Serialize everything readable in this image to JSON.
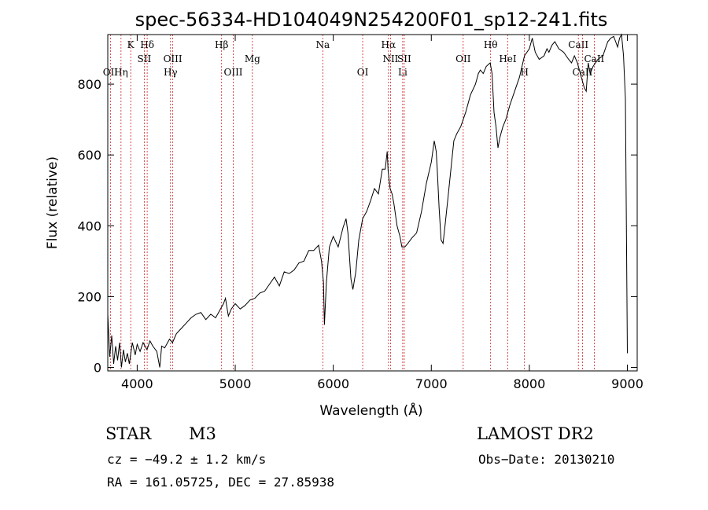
{
  "chart_data": {
    "type": "line",
    "title": "spec-56334-HD104049N254200F01_sp12-241.fits",
    "xlabel": "Wavelength (Å)",
    "ylabel": "Flux (relative)",
    "xlim": [
      3700,
      9100
    ],
    "ylim": [
      -10,
      940
    ],
    "xticks": [
      4000,
      5000,
      6000,
      7000,
      8000,
      9000
    ],
    "yticks": [
      0,
      200,
      400,
      600,
      800
    ],
    "grid": false,
    "series": [
      {
        "x": [
          3700,
          3720,
          3740,
          3760,
          3780,
          3800,
          3820,
          3840,
          3860,
          3880,
          3900,
          3920,
          3950,
          3980,
          4000,
          4030,
          4060,
          4100,
          4130,
          4160,
          4200,
          4230,
          4250,
          4280,
          4300,
          4330,
          4360,
          4400,
          4450,
          4500,
          4550,
          4600,
          4650,
          4700,
          4750,
          4800,
          4850,
          4880,
          4900,
          4930,
          4960,
          5000,
          5050,
          5100,
          5150,
          5200,
          5250,
          5300,
          5350,
          5400,
          5450,
          5500,
          5550,
          5600,
          5650,
          5700,
          5750,
          5800,
          5850,
          5880,
          5900,
          5910,
          5930,
          5960,
          6000,
          6050,
          6100,
          6130,
          6150,
          6180,
          6200,
          6230,
          6260,
          6300,
          6340,
          6380,
          6420,
          6460,
          6500,
          6530,
          6550,
          6560,
          6580,
          6600,
          6620,
          6650,
          6680,
          6700,
          6730,
          6760,
          6800,
          6850,
          6900,
          6950,
          7000,
          7030,
          7050,
          7060,
          7080,
          7100,
          7120,
          7140,
          7170,
          7200,
          7230,
          7260,
          7300,
          7350,
          7400,
          7450,
          7480,
          7500,
          7530,
          7560,
          7600,
          7620,
          7640,
          7660,
          7680,
          7700,
          7730,
          7760,
          7800,
          7850,
          7900,
          7950,
          8000,
          8030,
          8060,
          8100,
          8150,
          8180,
          8200,
          8230,
          8260,
          8300,
          8350,
          8400,
          8430,
          8460,
          8490,
          8520,
          8540,
          8560,
          8580,
          8600,
          8620,
          8650,
          8700,
          8750,
          8800,
          8830,
          8860,
          8880,
          8900,
          8920,
          8940,
          8960,
          8980,
          9000
        ],
        "y": [
          150,
          30,
          90,
          10,
          60,
          20,
          70,
          0,
          50,
          15,
          40,
          10,
          70,
          35,
          65,
          45,
          70,
          50,
          75,
          60,
          45,
          0,
          60,
          55,
          65,
          80,
          70,
          95,
          110,
          125,
          140,
          150,
          155,
          135,
          150,
          140,
          165,
          180,
          195,
          145,
          165,
          180,
          165,
          175,
          190,
          195,
          210,
          215,
          235,
          255,
          230,
          270,
          265,
          275,
          295,
          300,
          330,
          330,
          345,
          300,
          240,
          120,
          240,
          340,
          370,
          340,
          395,
          420,
          380,
          250,
          220,
          270,
          360,
          420,
          440,
          470,
          505,
          490,
          560,
          560,
          610,
          555,
          505,
          490,
          460,
          400,
          370,
          340,
          340,
          350,
          365,
          380,
          440,
          520,
          580,
          640,
          610,
          560,
          450,
          360,
          350,
          400,
          480,
          560,
          640,
          660,
          680,
          720,
          770,
          800,
          830,
          840,
          830,
          850,
          860,
          830,
          720,
          680,
          620,
          650,
          680,
          700,
          740,
          780,
          820,
          880,
          900,
          930,
          890,
          870,
          880,
          900,
          890,
          910,
          920,
          900,
          890,
          870,
          860,
          880,
          860,
          830,
          810,
          790,
          780,
          860,
          830,
          850,
          870,
          880,
          920,
          930,
          935,
          920,
          905,
          930,
          940,
          880,
          760,
          40
        ]
      }
    ],
    "lines": [
      {
        "label": "OII",
        "x": 3727,
        "row": 3
      },
      {
        "label": "Hη",
        "x": 3835,
        "row": 3
      },
      {
        "label": "K",
        "x": 3934,
        "row": 1
      },
      {
        "label": "Hδ",
        "x": 4102,
        "row": 1
      },
      {
        "label": "SII",
        "x": 4072,
        "row": 2
      },
      {
        "label": "OIII",
        "x": 4363,
        "row": 2
      },
      {
        "label": "Hγ",
        "x": 4340,
        "row": 3
      },
      {
        "label": "Hβ",
        "x": 4861,
        "row": 1
      },
      {
        "label": "OIII",
        "x": 4980,
        "row": 3
      },
      {
        "label": "Mg",
        "x": 5175,
        "row": 2
      },
      {
        "label": "Na",
        "x": 5893,
        "row": 1
      },
      {
        "label": "OI",
        "x": 6300,
        "row": 3
      },
      {
        "label": "Hα",
        "x": 6563,
        "row": 1
      },
      {
        "label": "NII",
        "x": 6584,
        "row": 2
      },
      {
        "label": "SII",
        "x": 6724,
        "row": 2
      },
      {
        "label": "Li",
        "x": 6708,
        "row": 3
      },
      {
        "label": "OII",
        "x": 7325,
        "row": 2
      },
      {
        "label": "Hθ",
        "x": 7605,
        "row": 1
      },
      {
        "label": "HeI",
        "x": 7780,
        "row": 2
      },
      {
        "label": "H",
        "x": 7950,
        "row": 3
      },
      {
        "label": "CaII",
        "x": 8500,
        "row": 1
      },
      {
        "label": "CaII",
        "x": 8662,
        "row": 2
      },
      {
        "label": "CaII",
        "x": 8542,
        "row": 3
      }
    ]
  },
  "info": {
    "object_class": "STAR",
    "subclass": "M3",
    "survey": "LAMOST DR2",
    "cz": "cz = −49.2 ± 1.2 km/s",
    "obs_date": "Obs−Date: 20130210",
    "coords": "RA = 161.05725, DEC =  27.85938"
  }
}
